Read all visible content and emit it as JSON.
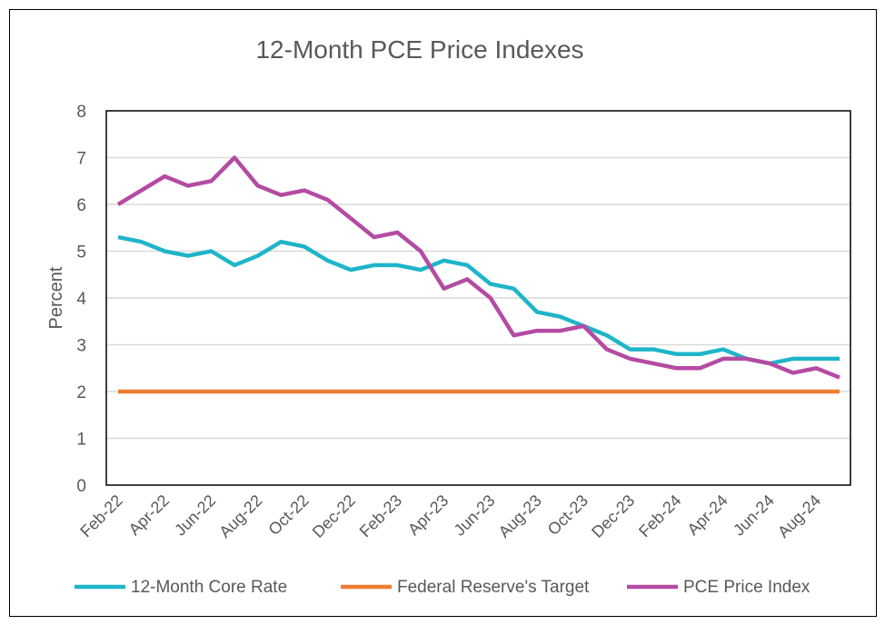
{
  "chart_data": {
    "type": "line",
    "title": "12-Month PCE Price Indexes",
    "ylabel": "Percent",
    "xlabel": "",
    "ylim": [
      0,
      8
    ],
    "yticks": [
      "0",
      "1",
      "2",
      "3",
      "4",
      "5",
      "6",
      "7",
      "8"
    ],
    "grid": true,
    "legend_position": "bottom",
    "x": [
      "Feb-22",
      "Mar-22",
      "Apr-22",
      "May-22",
      "Jun-22",
      "Jul-22",
      "Aug-22",
      "Sep-22",
      "Oct-22",
      "Nov-22",
      "Dec-22",
      "Jan-23",
      "Feb-23",
      "Mar-23",
      "Apr-23",
      "May-23",
      "Jun-23",
      "Jul-23",
      "Aug-23",
      "Sep-23",
      "Oct-23",
      "Nov-23",
      "Dec-23",
      "Jan-24",
      "Feb-24",
      "Mar-24",
      "Apr-24",
      "May-24",
      "Jun-24",
      "Jul-24",
      "Aug-24",
      "Sep-24"
    ],
    "xtick_labels": [
      "Feb-22",
      "Apr-22",
      "Jun-22",
      "Aug-22",
      "Oct-22",
      "Dec-22",
      "Feb-23",
      "Apr-23",
      "Jun-23",
      "Aug-23",
      "Oct-23",
      "Dec-23",
      "Feb-24",
      "Apr-24",
      "Jun-24",
      "Aug-24"
    ],
    "series": [
      {
        "name": "12-Month Core Rate",
        "color": "#1fb5c9",
        "values": [
          5.3,
          5.2,
          5.0,
          4.9,
          5.0,
          4.7,
          4.9,
          5.2,
          5.1,
          4.8,
          4.6,
          4.7,
          4.7,
          4.6,
          4.8,
          4.7,
          4.3,
          4.2,
          3.7,
          3.6,
          3.4,
          3.2,
          2.9,
          2.9,
          2.8,
          2.8,
          2.9,
          2.7,
          2.6,
          2.7,
          2.7,
          2.7
        ]
      },
      {
        "name": "Federal Reserve's Target",
        "color": "#ed7d31",
        "values": [
          2,
          2,
          2,
          2,
          2,
          2,
          2,
          2,
          2,
          2,
          2,
          2,
          2,
          2,
          2,
          2,
          2,
          2,
          2,
          2,
          2,
          2,
          2,
          2,
          2,
          2,
          2,
          2,
          2,
          2,
          2,
          2
        ]
      },
      {
        "name": "PCE Price Index",
        "color": "#b44ba3",
        "values": [
          6.0,
          6.3,
          6.6,
          6.4,
          6.5,
          7.0,
          6.4,
          6.2,
          6.3,
          6.1,
          5.7,
          5.3,
          5.4,
          5.0,
          4.2,
          4.4,
          4.0,
          3.2,
          3.3,
          3.3,
          3.4,
          2.9,
          2.7,
          2.6,
          2.5,
          2.5,
          2.7,
          2.7,
          2.6,
          2.4,
          2.5,
          2.3
        ]
      }
    ]
  }
}
